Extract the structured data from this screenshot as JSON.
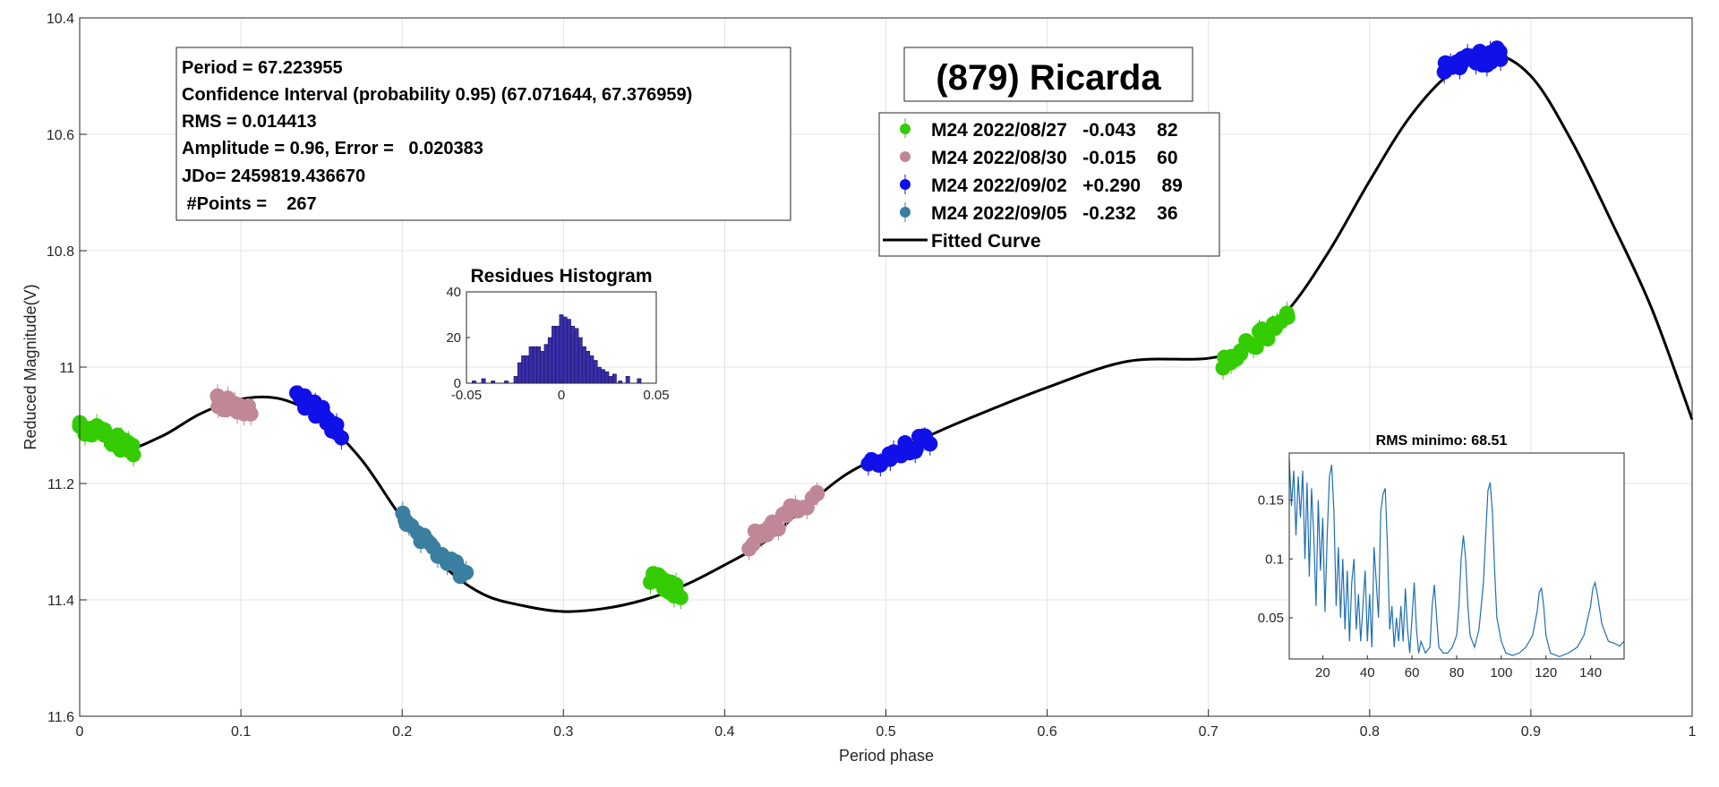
{
  "chart_data": [
    {
      "type": "scatter",
      "title": "(879) Ricarda",
      "xlabel": "Period phase",
      "ylabel": "Reduced Magnitude(V)",
      "xlim": [
        0,
        1
      ],
      "ylim": [
        10.4,
        11.6
      ],
      "y_reversed": true,
      "grid": true,
      "xticks": [
        "0",
        "0.1",
        "0.2",
        "0.3",
        "0.4",
        "0.5",
        "0.6",
        "0.7",
        "0.8",
        "0.9",
        "1"
      ],
      "yticks": [
        "10.4",
        "10.6",
        "10.8",
        "11",
        "11.2",
        "11.4",
        "11.6"
      ],
      "info_box": [
        "Period =  67.223955",
        "Confidence Interval (probability 0.95) (67.071644, 67.376959)",
        "RMS = 0.014413",
        "Amplitude = 0.96, Error =   0.020383",
        "JDo= 2459819.436670",
        " #Points =    267"
      ],
      "legend_position": "top-center",
      "series": [
        {
          "name": "M24 2022/08/27   -0.043    82",
          "color": "#33cc00",
          "segments": [
            {
              "x_start": 0.0,
              "x_end": 0.035,
              "y_start": 11.1,
              "y_end": 11.14
            },
            {
              "x_start": 0.355,
              "x_end": 0.372,
              "y_start": 11.36,
              "y_end": 11.39
            },
            {
              "x_start": 0.71,
              "x_end": 0.75,
              "y_start": 10.99,
              "y_end": 10.92
            }
          ]
        },
        {
          "name": "M24 2022/08/30   -0.015    60",
          "color": "#c08896",
          "segments": [
            {
              "x_start": 0.085,
              "x_end": 0.105,
              "y_start": 11.06,
              "y_end": 11.07
            },
            {
              "x_start": 0.415,
              "x_end": 0.458,
              "y_start": 11.3,
              "y_end": 11.22
            }
          ]
        },
        {
          "name": "M24 2022/09/02   +0.290    89",
          "color": "#1010e8",
          "segments": [
            {
              "x_start": 0.135,
              "x_end": 0.162,
              "y_start": 11.05,
              "y_end": 11.11
            },
            {
              "x_start": 0.49,
              "x_end": 0.528,
              "y_start": 11.17,
              "y_end": 11.12
            },
            {
              "x_start": 0.845,
              "x_end": 0.882,
              "y_start": 10.49,
              "y_end": 10.46
            }
          ]
        },
        {
          "name": "M24 2022/09/05   -0.232    36",
          "color": "#3a7ea0",
          "segments": [
            {
              "x_start": 0.2,
              "x_end": 0.24,
              "y_start": 11.26,
              "y_end": 11.36
            }
          ]
        }
      ],
      "fitted_curve": {
        "name": "Fitted Curve",
        "color": "#000000",
        "points": [
          [
            0.0,
            11.09
          ],
          [
            0.025,
            11.14
          ],
          [
            0.05,
            11.12
          ],
          [
            0.075,
            11.08
          ],
          [
            0.1,
            11.055
          ],
          [
            0.125,
            11.055
          ],
          [
            0.15,
            11.09
          ],
          [
            0.175,
            11.16
          ],
          [
            0.2,
            11.26
          ],
          [
            0.225,
            11.34
          ],
          [
            0.25,
            11.39
          ],
          [
            0.275,
            11.41
          ],
          [
            0.3,
            11.42
          ],
          [
            0.325,
            11.415
          ],
          [
            0.35,
            11.4
          ],
          [
            0.375,
            11.375
          ],
          [
            0.4,
            11.34
          ],
          [
            0.425,
            11.3
          ],
          [
            0.45,
            11.24
          ],
          [
            0.475,
            11.185
          ],
          [
            0.5,
            11.15
          ],
          [
            0.525,
            11.12
          ],
          [
            0.55,
            11.09
          ],
          [
            0.6,
            11.035
          ],
          [
            0.65,
            10.99
          ],
          [
            0.7,
            10.985
          ],
          [
            0.725,
            10.96
          ],
          [
            0.75,
            10.9
          ],
          [
            0.775,
            10.8
          ],
          [
            0.8,
            10.68
          ],
          [
            0.825,
            10.57
          ],
          [
            0.85,
            10.495
          ],
          [
            0.875,
            10.462
          ],
          [
            0.9,
            10.5
          ],
          [
            0.925,
            10.61
          ],
          [
            0.95,
            10.75
          ],
          [
            0.975,
            10.9
          ],
          [
            1.0,
            11.09
          ]
        ]
      }
    },
    {
      "type": "bar",
      "title": "Residues Histogram",
      "color": "#3a2ea8",
      "xlim": [
        -0.05,
        0.05
      ],
      "ylim": [
        0,
        40
      ],
      "xticks": [
        "-0.05",
        "0",
        "0.05"
      ],
      "yticks": [
        "0",
        "20",
        "40"
      ],
      "bins": [
        {
          "x": -0.046,
          "v": 1
        },
        {
          "x": -0.041,
          "v": 2
        },
        {
          "x": -0.036,
          "v": 1
        },
        {
          "x": -0.029,
          "v": 1
        },
        {
          "x": -0.024,
          "v": 3
        },
        {
          "x": -0.022,
          "v": 9
        },
        {
          "x": -0.02,
          "v": 12
        },
        {
          "x": -0.018,
          "v": 12
        },
        {
          "x": -0.016,
          "v": 16
        },
        {
          "x": -0.014,
          "v": 16
        },
        {
          "x": -0.012,
          "v": 16
        },
        {
          "x": -0.01,
          "v": 14
        },
        {
          "x": -0.008,
          "v": 17
        },
        {
          "x": -0.006,
          "v": 20
        },
        {
          "x": -0.004,
          "v": 25
        },
        {
          "x": -0.002,
          "v": 25
        },
        {
          "x": 0.0,
          "v": 30
        },
        {
          "x": 0.002,
          "v": 29
        },
        {
          "x": 0.004,
          "v": 28
        },
        {
          "x": 0.006,
          "v": 25
        },
        {
          "x": 0.008,
          "v": 24
        },
        {
          "x": 0.01,
          "v": 20
        },
        {
          "x": 0.012,
          "v": 16
        },
        {
          "x": 0.014,
          "v": 14
        },
        {
          "x": 0.016,
          "v": 12
        },
        {
          "x": 0.018,
          "v": 10
        },
        {
          "x": 0.02,
          "v": 7
        },
        {
          "x": 0.022,
          "v": 6
        },
        {
          "x": 0.024,
          "v": 5
        },
        {
          "x": 0.026,
          "v": 3
        },
        {
          "x": 0.028,
          "v": 4
        },
        {
          "x": 0.031,
          "v": 1
        },
        {
          "x": 0.035,
          "v": 3
        },
        {
          "x": 0.041,
          "v": 2
        }
      ]
    },
    {
      "type": "line",
      "title": "RMS minimo: 68.51",
      "color": "#1f6fb4",
      "xlim": [
        5,
        155
      ],
      "ylim": [
        0.015,
        0.19
      ],
      "xticks": [
        "20",
        "40",
        "60",
        "80",
        "100",
        "120",
        "140"
      ],
      "yticks": [
        "0.05",
        "0.1",
        "0.15"
      ],
      "points": [
        [
          5,
          0.185
        ],
        [
          6,
          0.145
        ],
        [
          7,
          0.175
        ],
        [
          8,
          0.12
        ],
        [
          9,
          0.17
        ],
        [
          10,
          0.135
        ],
        [
          11,
          0.175
        ],
        [
          12,
          0.1
        ],
        [
          13,
          0.165
        ],
        [
          14,
          0.085
        ],
        [
          15,
          0.16
        ],
        [
          16,
          0.12
        ],
        [
          17,
          0.06
        ],
        [
          18,
          0.15
        ],
        [
          19,
          0.09
        ],
        [
          20,
          0.135
        ],
        [
          21,
          0.055
        ],
        [
          22,
          0.12
        ],
        [
          23,
          0.17
        ],
        [
          24,
          0.18
        ],
        [
          25,
          0.14
        ],
        [
          26,
          0.06
        ],
        [
          27,
          0.11
        ],
        [
          28,
          0.05
        ],
        [
          29,
          0.1
        ],
        [
          30,
          0.04
        ],
        [
          31,
          0.09
        ],
        [
          32,
          0.03
        ],
        [
          33,
          0.08
        ],
        [
          34,
          0.1
        ],
        [
          35,
          0.04
        ],
        [
          36,
          0.07
        ],
        [
          37,
          0.03
        ],
        [
          38,
          0.06
        ],
        [
          39,
          0.09
        ],
        [
          40,
          0.03
        ],
        [
          41,
          0.07
        ],
        [
          42,
          0.025
        ],
        [
          43,
          0.11
        ],
        [
          44,
          0.08
        ],
        [
          45,
          0.05
        ],
        [
          46,
          0.14
        ],
        [
          47,
          0.155
        ],
        [
          48,
          0.16
        ],
        [
          49,
          0.11
        ],
        [
          50,
          0.04
        ],
        [
          51,
          0.06
        ],
        [
          52,
          0.025
        ],
        [
          53,
          0.05
        ],
        [
          54,
          0.03
        ],
        [
          55,
          0.06
        ],
        [
          56,
          0.03
        ],
        [
          57,
          0.075
        ],
        [
          58,
          0.04
        ],
        [
          59,
          0.02
        ],
        [
          60,
          0.05
        ],
        [
          61,
          0.08
        ],
        [
          62,
          0.04
        ],
        [
          63,
          0.02
        ],
        [
          64,
          0.03
        ],
        [
          66,
          0.02
        ],
        [
          68,
          0.025
        ],
        [
          69,
          0.06
        ],
        [
          70,
          0.078
        ],
        [
          71,
          0.05
        ],
        [
          72,
          0.025
        ],
        [
          74,
          0.02
        ],
        [
          76,
          0.02
        ],
        [
          78,
          0.025
        ],
        [
          80,
          0.035
        ],
        [
          81,
          0.06
        ],
        [
          82,
          0.1
        ],
        [
          83,
          0.12
        ],
        [
          84,
          0.1
        ],
        [
          85,
          0.06
        ],
        [
          86,
          0.035
        ],
        [
          88,
          0.025
        ],
        [
          90,
          0.04
        ],
        [
          92,
          0.08
        ],
        [
          93,
          0.12
        ],
        [
          94,
          0.158
        ],
        [
          95,
          0.165
        ],
        [
          96,
          0.14
        ],
        [
          97,
          0.09
        ],
        [
          98,
          0.05
        ],
        [
          100,
          0.03
        ],
        [
          102,
          0.02
        ],
        [
          105,
          0.018
        ],
        [
          108,
          0.02
        ],
        [
          111,
          0.025
        ],
        [
          114,
          0.035
        ],
        [
          116,
          0.055
        ],
        [
          117,
          0.072
        ],
        [
          118,
          0.075
        ],
        [
          119,
          0.06
        ],
        [
          120,
          0.035
        ],
        [
          122,
          0.02
        ],
        [
          126,
          0.017
        ],
        [
          130,
          0.02
        ],
        [
          134,
          0.025
        ],
        [
          137,
          0.035
        ],
        [
          140,
          0.06
        ],
        [
          141,
          0.075
        ],
        [
          142,
          0.08
        ],
        [
          143,
          0.07
        ],
        [
          145,
          0.045
        ],
        [
          148,
          0.03
        ],
        [
          151,
          0.028
        ],
        [
          153,
          0.026
        ],
        [
          155,
          0.03
        ]
      ]
    }
  ]
}
